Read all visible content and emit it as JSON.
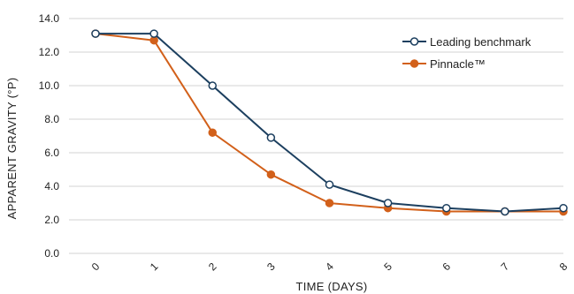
{
  "chart_data": {
    "type": "line",
    "xlabel": "TIME (DAYS)",
    "ylabel": "APPARENT GRAVITY (°P)",
    "x": [
      "0",
      "1",
      "2",
      "3",
      "4",
      "5",
      "6",
      "7",
      "8"
    ],
    "ylim": [
      0,
      14
    ],
    "yticks": [
      "0.0",
      "2.0",
      "4.0",
      "6.0",
      "8.0",
      "10.0",
      "12.0",
      "14.0"
    ],
    "grid": true,
    "legend_position": "top-right",
    "series": [
      {
        "name": "Leading benchmark",
        "color": "#1c3f5f",
        "marker": "open-circle",
        "values": [
          13.1,
          13.1,
          10.0,
          6.9,
          4.1,
          3.0,
          2.7,
          2.5,
          2.7
        ]
      },
      {
        "name": "Pinnacle™",
        "color": "#d2601a",
        "marker": "filled-circle",
        "values": [
          13.1,
          12.7,
          7.2,
          4.7,
          3.0,
          2.7,
          2.5,
          2.5,
          2.5
        ]
      }
    ]
  }
}
